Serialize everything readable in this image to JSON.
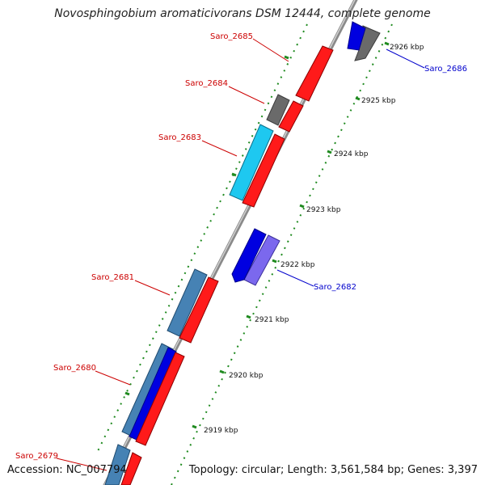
{
  "map": {
    "title": "Novosphingobium aromaticivorans DSM 12444, complete genome",
    "accession": "Accession: NC_007794",
    "summary": "Topology: circular; Length: 3,561,584 bp; Genes: 3,397",
    "colors": {
      "backbone": "#8a8a8a",
      "tick": "#1f8a1f",
      "forward_label": "#cc0000",
      "reverse_label": "#0000cc"
    }
  },
  "ticks": [
    {
      "label": "2926 kbp",
      "kbp": 2926
    },
    {
      "label": "2925 kbp",
      "kbp": 2925
    },
    {
      "label": "2924 kbp",
      "kbp": 2924
    },
    {
      "label": "2923 kbp",
      "kbp": 2923
    },
    {
      "label": "2922 kbp",
      "kbp": 2922
    },
    {
      "label": "2921 kbp",
      "kbp": 2921
    },
    {
      "label": "2920 kbp",
      "kbp": 2920
    },
    {
      "label": "2919 kbp",
      "kbp": 2919
    }
  ],
  "gene_labels": [
    {
      "label": "Saro_2686",
      "strand": "reverse"
    },
    {
      "label": "Saro_2685",
      "strand": "forward"
    },
    {
      "label": "Saro_2684",
      "strand": "forward"
    },
    {
      "label": "Saro_2683",
      "strand": "forward"
    },
    {
      "label": "Saro_2682",
      "strand": "reverse"
    },
    {
      "label": "Saro_2681",
      "strand": "forward"
    },
    {
      "label": "Saro_2680",
      "strand": "forward"
    },
    {
      "label": "Saro_2679",
      "strand": "forward"
    }
  ]
}
